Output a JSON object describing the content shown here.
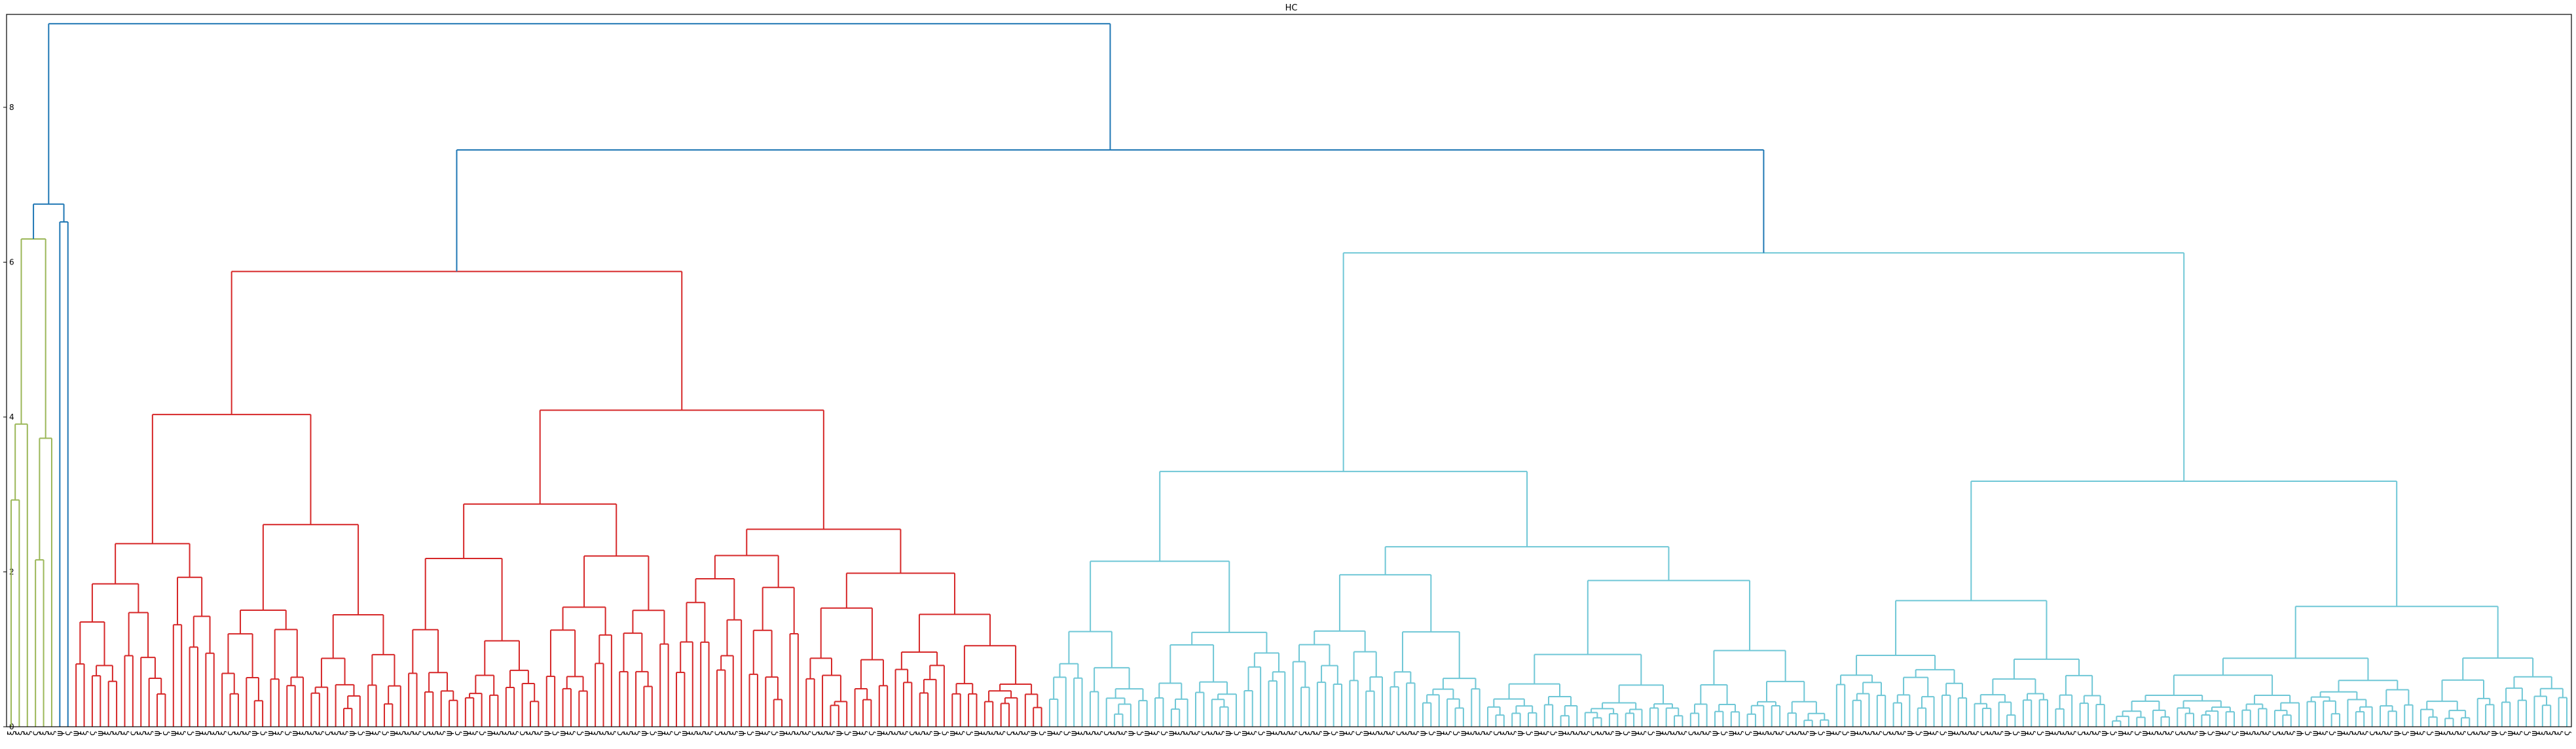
{
  "chart_data": {
    "type": "dendrogram",
    "title": "HC",
    "xlabel": "",
    "ylabel": "",
    "ylim": [
      0,
      9.2
    ],
    "yticks": [
      "0",
      "2",
      "4",
      "6",
      "8"
    ],
    "grid": false,
    "legend": "none",
    "colors": {
      "root": "#1f77b4",
      "olive_cluster": "#9bb758",
      "red_cluster": "#d62728",
      "cyan_cluster": "#6fc7d6"
    },
    "root_merge_height": 9.08,
    "subtree_merges": {
      "left_group": 6.75,
      "red_cyan_join": 7.45,
      "red_top": 5.88,
      "cyan_top": 6.12,
      "olive_top": 6.3
    },
    "leaf_label_pattern": [
      "ξ",
      "ξ",
      "ξ",
      "ς",
      "ξ",
      "ξ",
      "ψ",
      "ς",
      "ψ",
      "ξ",
      "ς",
      "ψ"
    ]
  }
}
